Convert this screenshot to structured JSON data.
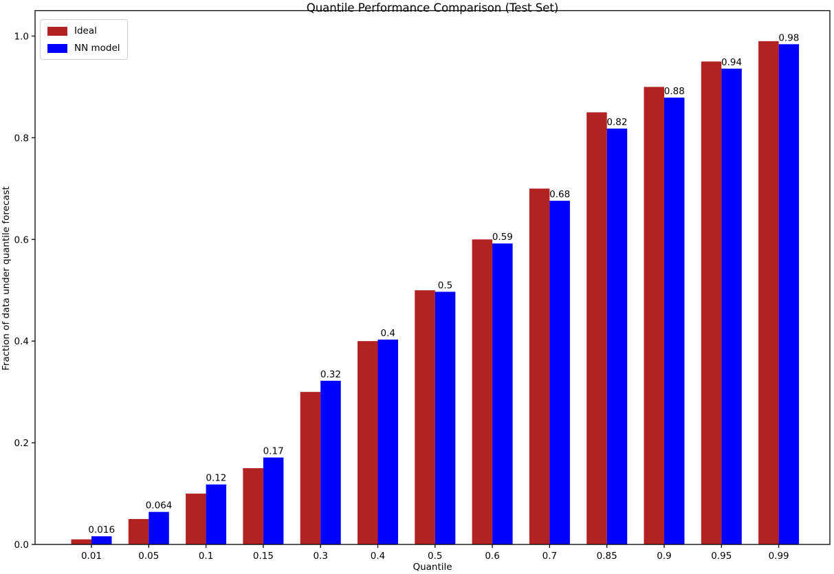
{
  "chart_data": {
    "type": "bar",
    "title": "Quantile Performance Comparison (Test Set)",
    "xlabel": "Quantile",
    "ylabel": "Fraction of data under quantile forecast",
    "categories": [
      "0.01",
      "0.05",
      "0.1",
      "0.15",
      "0.3",
      "0.4",
      "0.5",
      "0.6",
      "0.7",
      "0.85",
      "0.9",
      "0.95",
      "0.99"
    ],
    "series": [
      {
        "name": "Ideal",
        "color": "#b22222",
        "values": [
          0.01,
          0.05,
          0.1,
          0.15,
          0.3,
          0.4,
          0.5,
          0.6,
          0.7,
          0.85,
          0.9,
          0.95,
          0.99
        ]
      },
      {
        "name": "NN model",
        "color": "#0000ff",
        "values": [
          0.016,
          0.064,
          0.118,
          0.171,
          0.322,
          0.403,
          0.497,
          0.592,
          0.676,
          0.818,
          0.879,
          0.936,
          0.984
        ],
        "bar_labels": [
          "0.016",
          "0.064",
          "0.12",
          "0.17",
          "0.32",
          "0.4",
          "0.5",
          "0.59",
          "0.68",
          "0.82",
          "0.88",
          "0.94",
          "0.98"
        ]
      }
    ],
    "yticks": [
      "0.0",
      "0.2",
      "0.4",
      "0.6",
      "0.8",
      "1.0"
    ],
    "ylim": [
      0,
      1.05
    ],
    "legend_position": "upper left",
    "grid": false,
    "axis_color": "#000000",
    "text_color": "#000000",
    "background_color": "#ffffff"
  }
}
